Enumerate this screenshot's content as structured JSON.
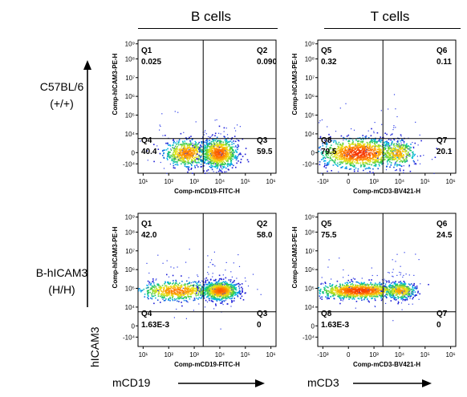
{
  "column_titles": [
    "B cells",
    "T cells"
  ],
  "row_labels": [
    {
      "name": "C57BL/6",
      "genotype": "(+/+)"
    },
    {
      "name": "B-hICAM3",
      "genotype": "(H/H)"
    }
  ],
  "y_marker_label": "hICAM3",
  "x_marker_labels": [
    "mCD19",
    "mCD3"
  ],
  "colors": {
    "axis": "#000000",
    "density_low": "#1f1fd6",
    "density_mid": "#22c55e",
    "density_high": "#ff1a00"
  },
  "chart_data": [
    {
      "type": "scatter",
      "panel": "B cells - C57BL/6 (+/+)",
      "xlabel": "Comp-mCD19-FITC-H",
      "ylabel": "Comp-hICAM3-PE-H",
      "xticks": [
        "10¹",
        "10²",
        "10³",
        "10⁴",
        "10⁵",
        "10⁶"
      ],
      "yticks": [
        "-10⁴",
        "0",
        "10⁴",
        "10⁵",
        "10⁶",
        "10⁷",
        "10⁸",
        "10⁹"
      ],
      "gates": [
        {
          "name": "Q1",
          "value": "0.025"
        },
        {
          "name": "Q2",
          "value": "0.090"
        },
        {
          "name": "Q3",
          "value": "59.5"
        },
        {
          "name": "Q4",
          "value": "40.4"
        }
      ],
      "populations": [
        {
          "x_log10": 2.9,
          "y_log10": 3.3,
          "spread_x": 0.45,
          "spread_y": 0.35,
          "share": 0.404
        },
        {
          "x_log10": 4.15,
          "y_log10": 3.3,
          "spread_x": 0.35,
          "spread_y": 0.4,
          "share": 0.595
        }
      ]
    },
    {
      "type": "scatter",
      "panel": "T cells - C57BL/6 (+/+)",
      "xlabel": "Comp-mCD3-BV421-H",
      "ylabel": "Comp-hICAM3-PE-H",
      "xticks": [
        "-10³",
        "0",
        "10³",
        "10⁴",
        "10⁵",
        "10⁶"
      ],
      "yticks": [
        "-10⁴",
        "0",
        "10⁴",
        "10⁵",
        "10⁶",
        "10⁷",
        "10⁸",
        "10⁹"
      ],
      "gates": [
        {
          "name": "Q5",
          "value": "0.32"
        },
        {
          "name": "Q6",
          "value": "0.11"
        },
        {
          "name": "Q7",
          "value": "20.1"
        },
        {
          "name": "Q8",
          "value": "79.5"
        }
      ],
      "populations": [
        {
          "x_log10": 2.6,
          "y_log10": 3.3,
          "spread_x": 0.8,
          "spread_y": 0.4,
          "share": 0.795
        },
        {
          "x_log10": 4.1,
          "y_log10": 3.3,
          "spread_x": 0.35,
          "spread_y": 0.35,
          "share": 0.201
        }
      ]
    },
    {
      "type": "scatter",
      "panel": "B cells - B-hICAM3 (H/H)",
      "xlabel": "Comp-mCD19-FITC-H",
      "ylabel": "Comp-hICAM3-PE-H",
      "xticks": [
        "10¹",
        "10²",
        "10³",
        "10⁴",
        "10⁵",
        "10⁶"
      ],
      "yticks": [
        "-10⁴",
        "0",
        "10⁴",
        "10⁵",
        "10⁶",
        "10⁷",
        "10⁸",
        "10⁹"
      ],
      "gates": [
        {
          "name": "Q1",
          "value": "42.0"
        },
        {
          "name": "Q2",
          "value": "58.0"
        },
        {
          "name": "Q3",
          "value": "0"
        },
        {
          "name": "Q4",
          "value": "1.63E-3"
        }
      ],
      "populations": [
        {
          "x_log10": 2.5,
          "y_log10": 5.2,
          "spread_x": 0.75,
          "spread_y": 0.25,
          "share": 0.42
        },
        {
          "x_log10": 4.2,
          "y_log10": 5.2,
          "spread_x": 0.35,
          "spread_y": 0.25,
          "share": 0.58
        }
      ]
    },
    {
      "type": "scatter",
      "panel": "T cells - B-hICAM3 (H/H)",
      "xlabel": "Comp-mCD3-BV421-H",
      "ylabel": "Comp-hICAM3-PE-H",
      "xticks": [
        "-10³",
        "0",
        "10³",
        "10⁴",
        "10⁵",
        "10⁶"
      ],
      "yticks": [
        "-10⁴",
        "0",
        "10⁴",
        "10⁵",
        "10⁶",
        "10⁷",
        "10⁸",
        "10⁹"
      ],
      "gates": [
        {
          "name": "Q5",
          "value": "75.5"
        },
        {
          "name": "Q6",
          "value": "24.5"
        },
        {
          "name": "Q7",
          "value": "0"
        },
        {
          "name": "Q8",
          "value": "1.63E-3"
        }
      ],
      "populations": [
        {
          "x_log10": 2.6,
          "y_log10": 5.2,
          "spread_x": 0.85,
          "spread_y": 0.22,
          "share": 0.755
        },
        {
          "x_log10": 4.2,
          "y_log10": 5.2,
          "spread_x": 0.3,
          "spread_y": 0.22,
          "share": 0.245
        }
      ]
    }
  ]
}
